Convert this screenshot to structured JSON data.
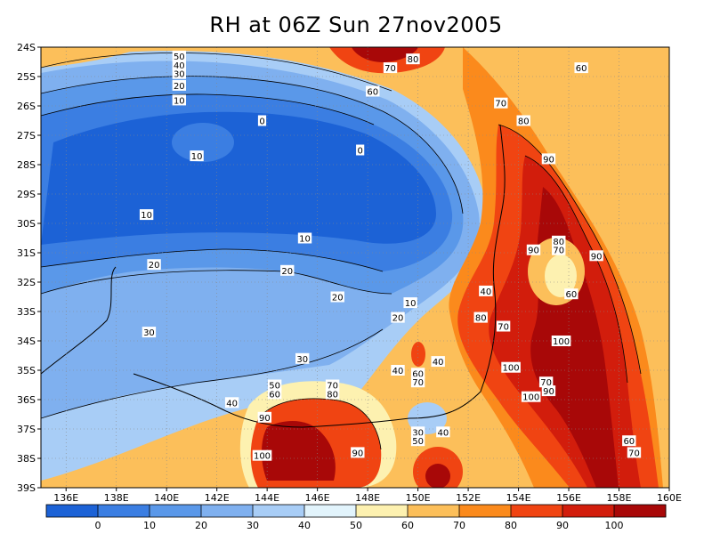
{
  "title": "RH at 06Z Sun 27nov2005",
  "chart_data": {
    "type": "heatmap",
    "title": "RH at 06Z Sun 27nov2005",
    "lat_ticks": [
      "24S",
      "25S",
      "26S",
      "27S",
      "28S",
      "29S",
      "30S",
      "31S",
      "32S",
      "33S",
      "34S",
      "35S",
      "36S",
      "37S",
      "38S",
      "39S"
    ],
    "lon_ticks": [
      "136E",
      "138E",
      "140E",
      "142E",
      "144E",
      "146E",
      "148E",
      "150E",
      "152E",
      "154E",
      "156E",
      "158E",
      "160E"
    ],
    "lat_range": [
      -39,
      -24
    ],
    "lon_range": [
      135,
      160
    ],
    "grid": true,
    "colorbar": {
      "levels": [
        0,
        10,
        20,
        30,
        40,
        50,
        60,
        70,
        80,
        90,
        100
      ],
      "labels": [
        "0",
        "10",
        "20",
        "30",
        "40",
        "50",
        "60",
        "70",
        "80",
        "90",
        "100"
      ],
      "colors": [
        "#1c62d6",
        "#3b7ee2",
        "#5a98e9",
        "#7fb0ef",
        "#a8cdf6",
        "#e2f4fc",
        "#fdf1b0",
        "#fcbf5a",
        "#fb8a1c",
        "#f04412",
        "#d21d0c",
        "#a80808"
      ]
    },
    "contour_labels": [
      {
        "text": "50",
        "lon": 140.5,
        "lat": -24.3
      },
      {
        "text": "40",
        "lon": 140.5,
        "lat": -24.6
      },
      {
        "text": "30",
        "lon": 140.5,
        "lat": -24.9
      },
      {
        "text": "20",
        "lon": 140.5,
        "lat": -25.3
      },
      {
        "text": "10",
        "lon": 140.5,
        "lat": -25.8
      },
      {
        "text": "0",
        "lon": 143.8,
        "lat": -26.5
      },
      {
        "text": "0",
        "lon": 147.7,
        "lat": -27.5
      },
      {
        "text": "10",
        "lon": 141.2,
        "lat": -27.7
      },
      {
        "text": "10",
        "lon": 139.2,
        "lat": -29.7
      },
      {
        "text": "10",
        "lon": 145.5,
        "lat": -30.5
      },
      {
        "text": "20",
        "lon": 139.5,
        "lat": -31.4
      },
      {
        "text": "20",
        "lon": 144.8,
        "lat": -31.6
      },
      {
        "text": "20",
        "lon": 146.8,
        "lat": -32.5
      },
      {
        "text": "10",
        "lon": 149.7,
        "lat": -32.7
      },
      {
        "text": "20",
        "lon": 149.2,
        "lat": -33.2
      },
      {
        "text": "30",
        "lon": 139.3,
        "lat": -33.7
      },
      {
        "text": "30",
        "lon": 145.4,
        "lat": -34.6
      },
      {
        "text": "40",
        "lon": 149.2,
        "lat": -35.0
      },
      {
        "text": "40",
        "lon": 142.6,
        "lat": -36.1
      },
      {
        "text": "50",
        "lon": 144.3,
        "lat": -35.5
      },
      {
        "text": "60",
        "lon": 144.3,
        "lat": -35.8
      },
      {
        "text": "70",
        "lon": 146.6,
        "lat": -35.5
      },
      {
        "text": "80",
        "lon": 146.6,
        "lat": -35.8
      },
      {
        "text": "90",
        "lon": 143.9,
        "lat": -36.6
      },
      {
        "text": "100",
        "lon": 143.8,
        "lat": -37.9
      },
      {
        "text": "90",
        "lon": 147.6,
        "lat": -37.8
      },
      {
        "text": "30",
        "lon": 150.0,
        "lat": -37.1
      },
      {
        "text": "50",
        "lon": 150.0,
        "lat": -37.4
      },
      {
        "text": "40",
        "lon": 151.0,
        "lat": -37.1
      },
      {
        "text": "40",
        "lon": 150.8,
        "lat": -34.7
      },
      {
        "text": "60",
        "lon": 150.0,
        "lat": -35.1
      },
      {
        "text": "70",
        "lon": 150.0,
        "lat": -35.4
      },
      {
        "text": "80",
        "lon": 149.8,
        "lat": -24.4
      },
      {
        "text": "70",
        "lon": 148.9,
        "lat": -24.7
      },
      {
        "text": "60",
        "lon": 148.2,
        "lat": -25.5
      },
      {
        "text": "70",
        "lon": 153.3,
        "lat": -25.9
      },
      {
        "text": "60",
        "lon": 156.5,
        "lat": -24.7
      },
      {
        "text": "80",
        "lon": 154.2,
        "lat": -26.5
      },
      {
        "text": "90",
        "lon": 155.2,
        "lat": -27.8
      },
      {
        "text": "90",
        "lon": 154.6,
        "lat": -30.9
      },
      {
        "text": "80",
        "lon": 155.6,
        "lat": -30.6
      },
      {
        "text": "70",
        "lon": 155.6,
        "lat": -30.9
      },
      {
        "text": "90",
        "lon": 157.1,
        "lat": -31.1
      },
      {
        "text": "60",
        "lon": 156.1,
        "lat": -32.4
      },
      {
        "text": "40",
        "lon": 152.7,
        "lat": -32.3
      },
      {
        "text": "80",
        "lon": 152.5,
        "lat": -33.2
      },
      {
        "text": "70",
        "lon": 153.4,
        "lat": -33.5
      },
      {
        "text": "100",
        "lon": 155.7,
        "lat": -34.0
      },
      {
        "text": "100",
        "lon": 153.7,
        "lat": -34.9
      },
      {
        "text": "70",
        "lon": 155.1,
        "lat": -35.4
      },
      {
        "text": "90",
        "lon": 155.2,
        "lat": -35.7
      },
      {
        "text": "100",
        "lon": 154.5,
        "lat": -35.9
      },
      {
        "text": "60",
        "lon": 158.4,
        "lat": -37.4
      },
      {
        "text": "70",
        "lon": 158.6,
        "lat": -37.8
      }
    ]
  }
}
